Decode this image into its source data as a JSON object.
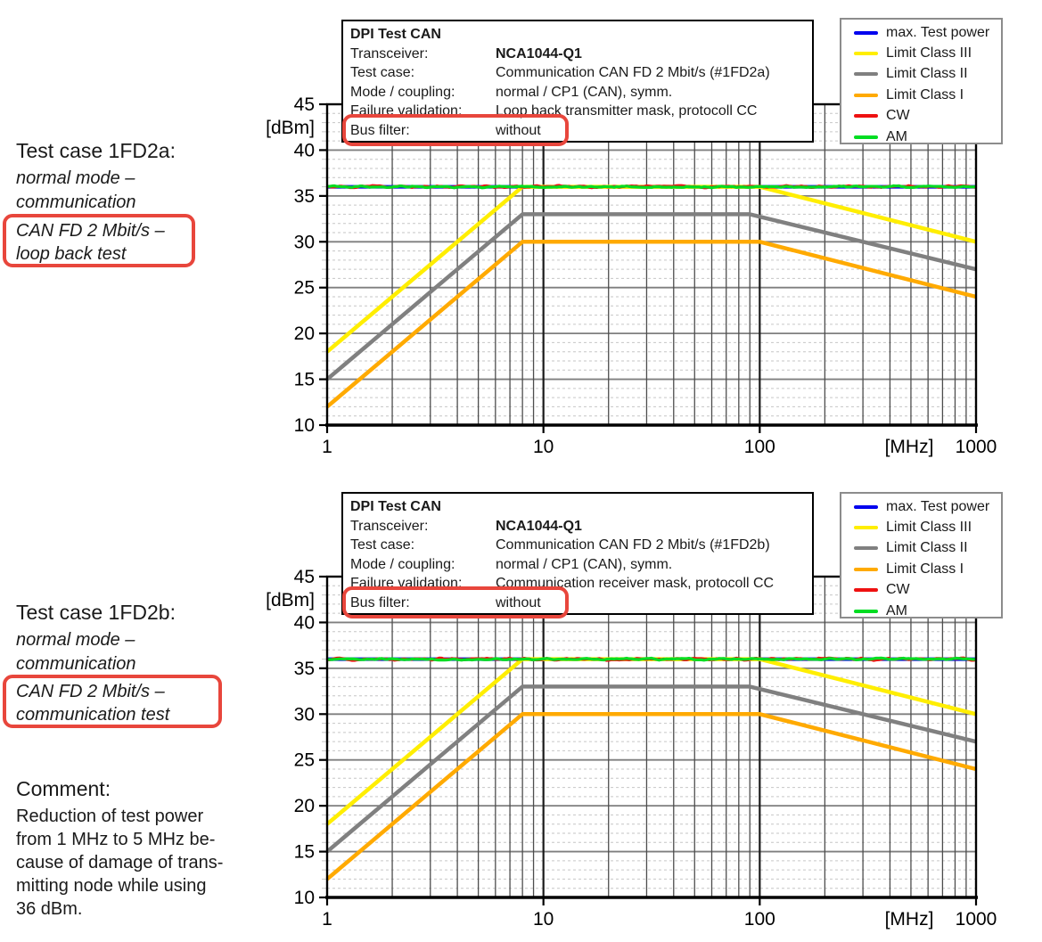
{
  "highlight_color": "#e8463c",
  "annotations": [
    {
      "title": "Test case 1FD2a:",
      "italic_lines": [
        "normal mode –",
        "communication"
      ],
      "boxed_italic_lines": [
        "CAN FD 2 Mbit/s –",
        "loop back test"
      ]
    },
    {
      "title": "Test case 1FD2b:",
      "italic_lines": [
        "normal mode –",
        "communication"
      ],
      "boxed_italic_lines": [
        "CAN FD 2 Mbit/s –",
        "communication test"
      ]
    }
  ],
  "comment": {
    "title": "Comment:",
    "lines": [
      "Reduction of test power",
      "from 1 MHz to 5 MHz be-",
      "cause of damage of trans-",
      "mitting node while using",
      "36 dBm."
    ]
  },
  "info_boxes": [
    {
      "title": "DPI Test CAN",
      "rows": [
        {
          "label": "Transceiver:",
          "value": "NCA1044-Q1"
        },
        {
          "label": "Test case:",
          "value": "Communication CAN FD 2 Mbit/s (#1FD2a)"
        },
        {
          "label": "Mode / coupling:",
          "value": "normal / CP1 (CAN), symm."
        },
        {
          "label": "Failure validation:",
          "value": "Loop back transmitter mask, protocoll CC"
        },
        {
          "label": "Bus filter:",
          "value": "without",
          "highlighted": true
        }
      ]
    },
    {
      "title": "DPI Test CAN",
      "rows": [
        {
          "label": "Transceiver:",
          "value": "NCA1044-Q1"
        },
        {
          "label": "Test case:",
          "value": "Communication CAN FD 2 Mbit/s (#1FD2b)"
        },
        {
          "label": "Mode / coupling:",
          "value": "normal / CP1 (CAN), symm."
        },
        {
          "label": "Failure validation:",
          "value": "Communication receiver mask, protocoll CC"
        },
        {
          "label": "Bus filter:",
          "value": "without",
          "highlighted": true
        }
      ]
    }
  ],
  "chart_data": [
    {
      "type": "line",
      "title": "DPI Test CAN - Communication CAN FD 2 Mbit/s (#1FD2a)",
      "x_scale": "log",
      "xlim": [
        1,
        1000
      ],
      "ylim": [
        10,
        45
      ],
      "x_unit": "[MHz]",
      "y_unit": "[dBm]",
      "x_ticks": [
        "1",
        "10",
        "100",
        "1000"
      ],
      "x_tick_values": [
        1,
        10,
        100,
        1000
      ],
      "y_ticks": [
        45,
        40,
        35,
        30,
        25,
        20,
        15,
        10
      ],
      "y_minor_step": 1,
      "grid": true,
      "legend_position": "top-right",
      "series": [
        {
          "name": "max. Test power",
          "color": "#0000ee",
          "width": 4,
          "noisy": false,
          "points": [
            [
              1,
              36
            ],
            [
              1000,
              36
            ]
          ]
        },
        {
          "name": "Limit Class III",
          "color": "#ffee00",
          "width": 4.5,
          "noisy": false,
          "points": [
            [
              1,
              18
            ],
            [
              8,
              36
            ],
            [
              100,
              36
            ],
            [
              1000,
              30
            ]
          ]
        },
        {
          "name": "Limit Class II",
          "color": "#808080",
          "width": 4.5,
          "noisy": false,
          "points": [
            [
              1,
              15
            ],
            [
              8,
              33
            ],
            [
              90,
              33
            ],
            [
              1000,
              27
            ]
          ]
        },
        {
          "name": "Limit Class I",
          "color": "#ffaa00",
          "width": 4.5,
          "noisy": false,
          "points": [
            [
              1,
              12
            ],
            [
              8,
              30
            ],
            [
              100,
              30
            ],
            [
              1000,
              24
            ]
          ]
        },
        {
          "name": "CW",
          "color": "#ee1111",
          "width": 3.2,
          "noisy": true,
          "noise_amp": 0.17,
          "points": [
            [
              1,
              36
            ],
            [
              1000,
              36
            ]
          ]
        },
        {
          "name": "AM",
          "color": "#00dd22",
          "width": 3.2,
          "noisy": true,
          "noise_amp": 0.14,
          "points": [
            [
              1,
              36
            ],
            [
              1000,
              36
            ]
          ]
        }
      ]
    },
    {
      "type": "line",
      "title": "DPI Test CAN - Communication CAN FD 2 Mbit/s (#1FD2b)",
      "x_scale": "log",
      "xlim": [
        1,
        1000
      ],
      "ylim": [
        10,
        45
      ],
      "x_unit": "[MHz]",
      "y_unit": "[dBm]",
      "x_ticks": [
        "1",
        "10",
        "100",
        "1000"
      ],
      "x_tick_values": [
        1,
        10,
        100,
        1000
      ],
      "y_ticks": [
        45,
        40,
        35,
        30,
        25,
        20,
        15,
        10
      ],
      "y_minor_step": 1,
      "grid": true,
      "legend_position": "top-right",
      "series": [
        {
          "name": "max. Test power",
          "color": "#0000ee",
          "width": 4,
          "noisy": false,
          "points": [
            [
              1,
              36
            ],
            [
              1000,
              36
            ]
          ]
        },
        {
          "name": "Limit Class III",
          "color": "#ffee00",
          "width": 4.5,
          "noisy": false,
          "points": [
            [
              1,
              18
            ],
            [
              8,
              36
            ],
            [
              100,
              36
            ],
            [
              1000,
              30
            ]
          ]
        },
        {
          "name": "Limit Class II",
          "color": "#808080",
          "width": 4.5,
          "noisy": false,
          "points": [
            [
              1,
              15
            ],
            [
              8,
              33
            ],
            [
              90,
              33
            ],
            [
              1000,
              27
            ]
          ]
        },
        {
          "name": "Limit Class I",
          "color": "#ffaa00",
          "width": 4.5,
          "noisy": false,
          "points": [
            [
              1,
              12
            ],
            [
              8,
              30
            ],
            [
              100,
              30
            ],
            [
              1000,
              24
            ]
          ]
        },
        {
          "name": "CW",
          "color": "#ee1111",
          "width": 3.2,
          "noisy": true,
          "noise_amp": 0.17,
          "points": [
            [
              1,
              36
            ],
            [
              1000,
              36
            ]
          ]
        },
        {
          "name": "AM",
          "color": "#00dd22",
          "width": 3.2,
          "noisy": true,
          "noise_amp": 0.14,
          "points": [
            [
              1,
              36
            ],
            [
              1000,
              36
            ]
          ]
        }
      ]
    }
  ]
}
